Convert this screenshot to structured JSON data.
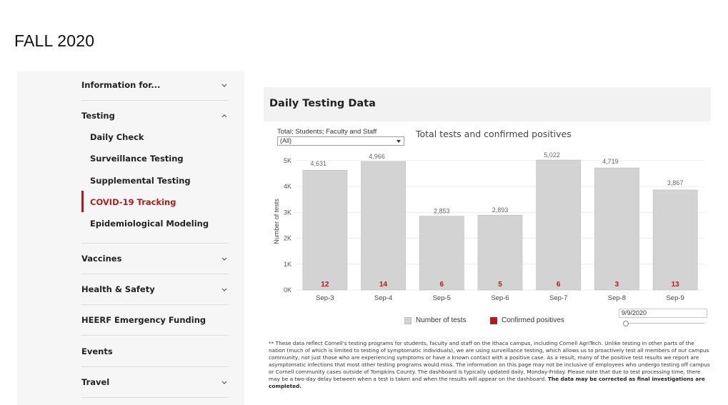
{
  "page": {
    "heading": "FALL 2020"
  },
  "sidebar": {
    "items": [
      {
        "label": "Information for...",
        "chevron": "chevron-down-icon"
      },
      {
        "label": "Testing",
        "chevron": "chevron-up-icon"
      },
      {
        "label": "Vaccines",
        "chevron": "chevron-down-icon"
      },
      {
        "label": "Health & Safety",
        "chevron": "chevron-down-icon"
      },
      {
        "label": "HEERF Emergency Funding",
        "chevron": ""
      },
      {
        "label": "Events",
        "chevron": ""
      },
      {
        "label": "Travel",
        "chevron": "chevron-down-icon"
      }
    ],
    "testing_subitems": [
      {
        "label": "Daily Check",
        "active": false
      },
      {
        "label": "Surveillance Testing",
        "active": false
      },
      {
        "label": "Supplemental Testing",
        "active": false
      },
      {
        "label": "COVID-19 Tracking",
        "active": true
      },
      {
        "label": "Epidemiological Modeling",
        "active": false
      }
    ],
    "active_color": "#b31b1b"
  },
  "dashboard": {
    "title": "Daily Testing Data",
    "filter": {
      "label": "Total; Students; Faculty and Staff",
      "value": "(All)"
    },
    "date_filter": {
      "value": "9/9/2020"
    },
    "footnote_text": "** These data reflect Cornell's testing programs for students, faculty and staff on the Ithaca campus, including Cornell AgriTech. Unlike testing in other parts of the nation (much of which is limited to testing of symptomatic individuals), we are using surveillance testing, which allows us to proactively test all members of our campus community, not just those who are experiencing symptoms or have a known contact with a positive case. As a result, many of the positive test results we report are asymptomatic infections that most other testing programs would miss. The information on this page may not be inclusive of employees who undergo testing off campus or Cornell community cases outside of Tompkins County. The dashboard is typically updated daily, Monday-Friday. Please note that due to test processing time, there may be a two-day delay between when a test is taken and when the results will appear on the dashboard.",
    "footnote_bold": "The data may be corrected as final investigations are completed."
  },
  "chart_data": {
    "type": "bar",
    "title": "Total tests and confirmed positives",
    "ylabel": "Number of tests",
    "xlabel": "",
    "categories": [
      "Sep-3",
      "Sep-4",
      "Sep-5",
      "Sep-6",
      "Sep-7",
      "Sep-8",
      "Sep-9"
    ],
    "series": [
      {
        "name": "Number of tests",
        "values": [
          4631,
          4966,
          2853,
          2893,
          5022,
          4719,
          3867
        ],
        "color": "#d3d3d3"
      },
      {
        "name": "Confirmed positives",
        "values": [
          12,
          14,
          6,
          5,
          6,
          3,
          13
        ],
        "color": "#b31b1b"
      }
    ],
    "bar_labels": [
      "4,631",
      "4,966",
      "2,853",
      "2,893",
      "5,022",
      "4,719",
      "3,867"
    ],
    "yticks": [
      0,
      1000,
      2000,
      3000,
      4000,
      5000
    ],
    "ytick_labels": [
      "0K",
      "1K",
      "2K",
      "3K",
      "4K",
      "5K"
    ],
    "ylim": [
      0,
      5300
    ],
    "grid": true,
    "legend_position": "bottom"
  }
}
